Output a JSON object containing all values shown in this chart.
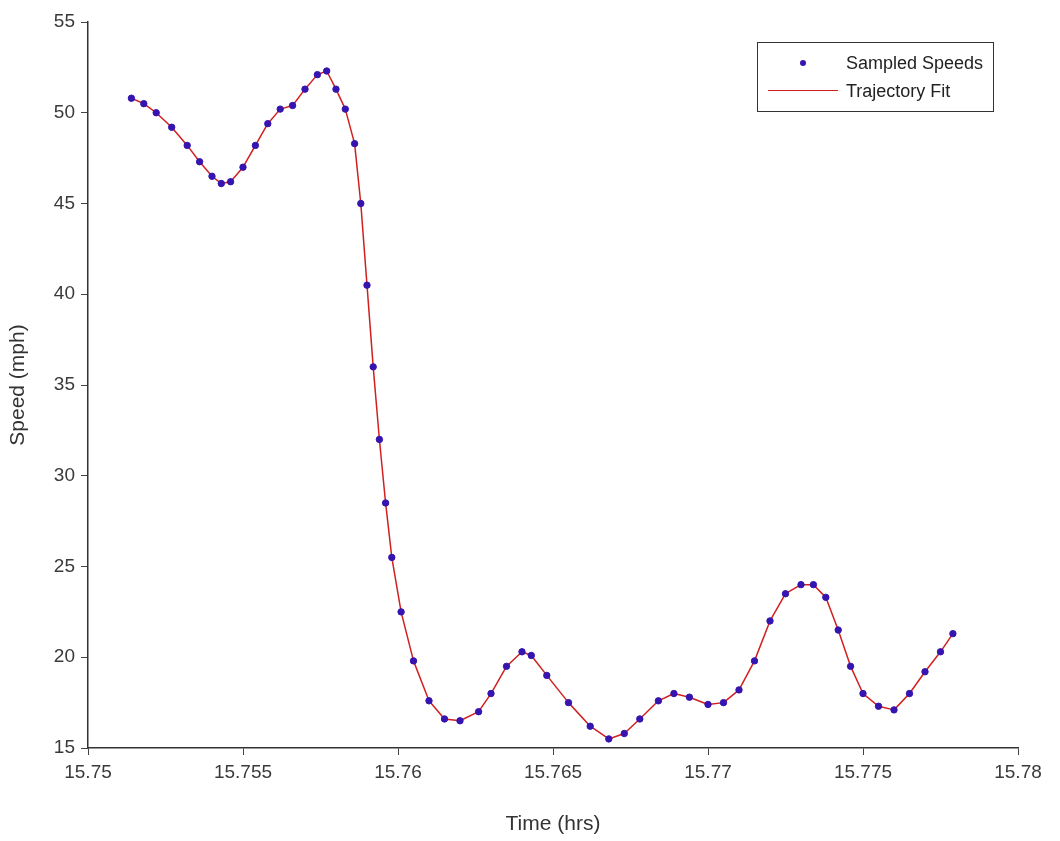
{
  "chart_data": {
    "type": "scatter",
    "xlabel": "Time (hrs)",
    "ylabel": "Speed (mph)",
    "xlim": [
      15.75,
      15.78
    ],
    "xticks": [
      15.75,
      15.755,
      15.76,
      15.765,
      15.77,
      15.775,
      15.78
    ],
    "ylim": [
      15,
      55
    ],
    "yticks": [
      15,
      20,
      25,
      30,
      35,
      40,
      45,
      50,
      55
    ],
    "grid": false,
    "legend": "top right",
    "marker": "circle",
    "series": [
      {
        "name": "Sampled Speeds",
        "color": "#3514b0",
        "x": [
          15.7514,
          15.7518,
          15.7522,
          15.7527,
          15.7532,
          15.7536,
          15.754,
          15.7543,
          15.7546,
          15.755,
          15.7554,
          15.7558,
          15.7562,
          15.7566,
          15.757,
          15.7574,
          15.7577,
          15.758,
          15.7583,
          15.7586,
          15.7588,
          15.759,
          15.7592,
          15.7594,
          15.7596,
          15.7598,
          15.7601,
          15.7605,
          15.761,
          15.7615,
          15.762,
          15.7626,
          15.763,
          15.7635,
          15.764,
          15.7643,
          15.7648,
          15.7655,
          15.7662,
          15.7668,
          15.7673,
          15.7678,
          15.7684,
          15.7689,
          15.7694,
          15.77,
          15.7705,
          15.771,
          15.7715,
          15.772,
          15.7725,
          15.773,
          15.7734,
          15.7738,
          15.7742,
          15.7746,
          15.775,
          15.7755,
          15.776,
          15.7765,
          15.777,
          15.7775,
          15.7779
        ],
        "values": [
          50.8,
          50.5,
          50.0,
          49.2,
          48.2,
          47.3,
          46.5,
          46.1,
          46.2,
          47.0,
          48.2,
          49.4,
          50.2,
          50.4,
          51.3,
          52.1,
          52.3,
          51.3,
          50.2,
          48.3,
          45.0,
          40.5,
          36.0,
          32.0,
          28.5,
          25.5,
          22.5,
          19.8,
          17.6,
          16.6,
          16.5,
          17.0,
          18.0,
          19.5,
          20.3,
          20.1,
          19.0,
          17.5,
          16.2,
          15.5,
          15.8,
          16.6,
          17.6,
          18.0,
          17.8,
          17.4,
          17.5,
          18.2,
          19.8,
          22.0,
          23.5,
          24.0,
          24.0,
          23.3,
          21.5,
          19.5,
          18.0,
          17.3,
          17.1,
          18.0,
          19.2,
          20.3,
          21.3
        ]
      },
      {
        "name": "Trajectory Fit",
        "type": "line",
        "color": "#d02020",
        "marker": "none",
        "line_style": "solid",
        "x": [
          15.7514,
          15.7518,
          15.7522,
          15.7527,
          15.7532,
          15.7536,
          15.754,
          15.7543,
          15.7546,
          15.755,
          15.7554,
          15.7558,
          15.7562,
          15.7566,
          15.757,
          15.7574,
          15.7577,
          15.758,
          15.7583,
          15.7586,
          15.7588,
          15.759,
          15.7592,
          15.7594,
          15.7596,
          15.7598,
          15.7601,
          15.7605,
          15.761,
          15.7615,
          15.762,
          15.7626,
          15.763,
          15.7635,
          15.764,
          15.7643,
          15.7648,
          15.7655,
          15.7662,
          15.7668,
          15.7673,
          15.7678,
          15.7684,
          15.7689,
          15.7694,
          15.77,
          15.7705,
          15.771,
          15.7715,
          15.772,
          15.7725,
          15.773,
          15.7734,
          15.7738,
          15.7742,
          15.7746,
          15.775,
          15.7755,
          15.776,
          15.7765,
          15.777,
          15.7775,
          15.7779
        ],
        "values": [
          50.8,
          50.5,
          50.0,
          49.2,
          48.2,
          47.3,
          46.5,
          46.1,
          46.2,
          47.0,
          48.2,
          49.4,
          50.2,
          50.4,
          51.3,
          52.1,
          52.3,
          51.3,
          50.2,
          48.3,
          45.0,
          40.5,
          36.0,
          32.0,
          28.5,
          25.5,
          22.5,
          19.8,
          17.6,
          16.6,
          16.5,
          17.0,
          18.0,
          19.5,
          20.3,
          20.1,
          19.0,
          17.5,
          16.2,
          15.5,
          15.8,
          16.6,
          17.6,
          18.0,
          17.8,
          17.4,
          17.5,
          18.2,
          19.8,
          22.0,
          23.5,
          24.0,
          24.0,
          23.3,
          21.5,
          19.5,
          18.0,
          17.3,
          17.1,
          18.0,
          19.2,
          20.3,
          21.3
        ]
      }
    ]
  }
}
